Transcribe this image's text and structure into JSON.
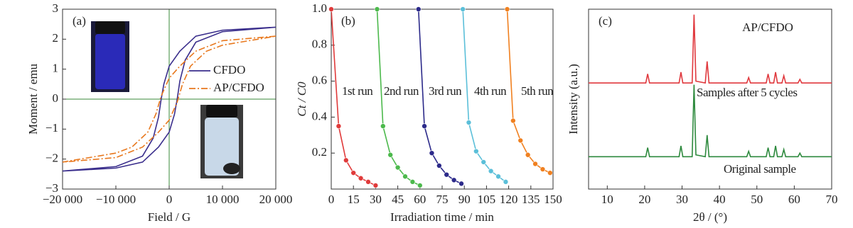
{
  "chart_data": [
    {
      "type": "line",
      "panel": "(a)",
      "xlabel": "Field / G",
      "ylabel": "Moment / emu",
      "xlim": [
        -20000,
        20000
      ],
      "xticks": [
        {
          "value": -20000,
          "label": "−20 000"
        },
        {
          "value": -10000,
          "label": "−10 000"
        },
        0,
        {
          "value": 10000,
          "label": "10 000"
        },
        {
          "value": 20000,
          "label": "20 000"
        }
      ],
      "ylim": [
        -3,
        3
      ],
      "yticks": [
        {
          "value": -3,
          "label": "−3"
        },
        {
          "value": -2,
          "label": "−2"
        },
        {
          "value": -1,
          "label": "−1"
        },
        0,
        1,
        2,
        3
      ],
      "zero_lines": true,
      "legend": "center-right",
      "series": [
        {
          "name": "CFDO",
          "color": "#3a2e8c",
          "style": "solid",
          "x": [
            20000,
            10000,
            5000,
            2000,
            0,
            -1000,
            -1500,
            -2000,
            -3000,
            -5000,
            -10000,
            -20000,
            -10000,
            -5000,
            -2000,
            0,
            1000,
            1500,
            2000,
            3000,
            5000,
            10000,
            20000
          ],
          "values": [
            2.4,
            2.3,
            2.1,
            1.6,
            1.1,
            0.5,
            0,
            -0.6,
            -1.3,
            -1.9,
            -2.25,
            -2.4,
            -2.3,
            -2.1,
            -1.6,
            -1.1,
            -0.5,
            0,
            0.6,
            1.3,
            1.9,
            2.25,
            2.4
          ]
        },
        {
          "name": "AP/CFDO",
          "color": "#e8781e",
          "style": "dash-dot",
          "x": [
            20000,
            10000,
            5000,
            2000,
            0,
            -1500,
            -2500,
            -4000,
            -7000,
            -10000,
            -20000,
            -10000,
            -5000,
            -2000,
            0,
            1500,
            2500,
            4000,
            7000,
            10000,
            20000
          ],
          "values": [
            2.1,
            1.95,
            1.6,
            1.1,
            0.7,
            0.1,
            -0.5,
            -1.1,
            -1.6,
            -1.8,
            -2.1,
            -1.95,
            -1.6,
            -1.1,
            -0.7,
            -0.1,
            0.5,
            1.1,
            1.6,
            1.8,
            2.1
          ]
        }
      ]
    },
    {
      "type": "line",
      "panel": "(b)",
      "xlabel": "Irradiation time / min",
      "ylabel": "Ct / C0",
      "xlim": [
        0,
        150
      ],
      "xticks": [
        0,
        15,
        30,
        45,
        60,
        75,
        90,
        105,
        120,
        135,
        150
      ],
      "ylim": [
        0,
        1
      ],
      "yticks": [
        0.2,
        0.4,
        0.6,
        0.8,
        {
          "value": 1,
          "label": "1.0"
        }
      ],
      "markers": true,
      "series": [
        {
          "name": "1st run",
          "color": "#e03a3a",
          "x": [
            0,
            5,
            10,
            15,
            20,
            25,
            30
          ],
          "values": [
            1.0,
            0.35,
            0.16,
            0.09,
            0.06,
            0.04,
            0.02
          ]
        },
        {
          "name": "2nd run",
          "color": "#4cb94c",
          "x": [
            31,
            35,
            40,
            45,
            50,
            55,
            60
          ],
          "values": [
            1.0,
            0.35,
            0.19,
            0.12,
            0.07,
            0.04,
            0.02
          ]
        },
        {
          "name": "3rd run",
          "color": "#2c2a8a",
          "x": [
            59,
            63,
            68,
            73,
            78,
            83,
            88
          ],
          "values": [
            1.0,
            0.35,
            0.2,
            0.13,
            0.08,
            0.05,
            0.03
          ]
        },
        {
          "name": "4th run",
          "color": "#5bbfd9",
          "x": [
            89,
            93,
            98,
            103,
            108,
            113,
            118
          ],
          "values": [
            1.0,
            0.37,
            0.21,
            0.15,
            0.1,
            0.07,
            0.04
          ]
        },
        {
          "name": "5th run",
          "color": "#f08020",
          "x": [
            119,
            123,
            128,
            133,
            138,
            143,
            148
          ],
          "values": [
            1.0,
            0.38,
            0.27,
            0.19,
            0.14,
            0.11,
            0.09
          ]
        }
      ]
    },
    {
      "type": "line",
      "panel": "(c)",
      "xlabel": "2θ / (°)",
      "ylabel": "Intensity (a.u.)",
      "xlim": [
        5,
        70
      ],
      "xticks": [
        10,
        20,
        30,
        40,
        50,
        60,
        70
      ],
      "ylim": [
        0,
        100
      ],
      "annotations": [
        "AP/CFDO"
      ],
      "series": [
        {
          "name": "Samples after 5 cycles",
          "color": "#e0393e",
          "x": [
            5,
            20.3,
            20.8,
            21.3,
            29.2,
            29.7,
            30.2,
            32.7,
            33.2,
            33.7,
            36.2,
            36.7,
            37.2,
            47.3,
            47.8,
            48.3,
            52.5,
            53,
            53.5,
            54.5,
            55,
            55.5,
            56.7,
            57.2,
            57.7,
            61,
            61.5,
            62,
            70
          ],
          "values": [
            59,
            59,
            64,
            59,
            59,
            65,
            59,
            59,
            97,
            60,
            59,
            71,
            59,
            59,
            62,
            59,
            59,
            64,
            59,
            59,
            65,
            59,
            59,
            63,
            59,
            59,
            61,
            59,
            59
          ]
        },
        {
          "name": "Original sample",
          "color": "#2e8a3e",
          "x": [
            5,
            20.3,
            20.8,
            21.3,
            29.2,
            29.7,
            30.2,
            32.7,
            33.2,
            33.7,
            36.2,
            36.7,
            37.2,
            47.3,
            47.8,
            48.3,
            52.5,
            53,
            53.5,
            54.5,
            55,
            55.5,
            56.7,
            57.2,
            57.7,
            61,
            61.5,
            62,
            70
          ],
          "values": [
            18,
            18,
            23,
            18,
            18,
            24,
            18,
            18,
            58,
            19,
            18,
            30,
            18,
            18,
            21,
            18,
            18,
            23,
            18,
            18,
            24,
            18,
            18,
            22,
            18,
            18,
            20,
            18,
            18
          ]
        }
      ]
    }
  ]
}
